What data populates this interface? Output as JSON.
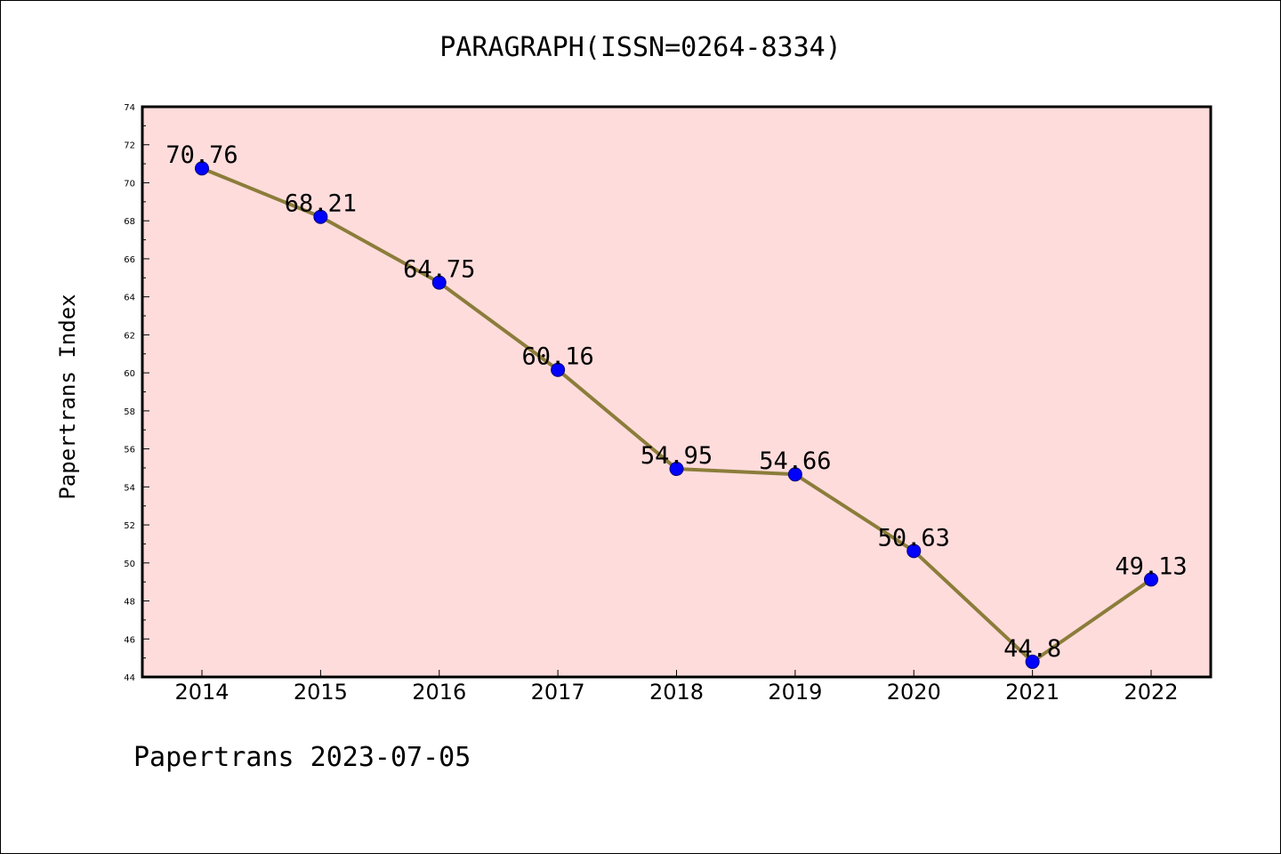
{
  "chart_data": {
    "type": "line",
    "title": "PARAGRAPH(ISSN=0264-8334)",
    "ylabel": "Papertrans Index",
    "xlabel": "",
    "footer": "Papertrans 2023-07-05",
    "x": [
      "2014",
      "2015",
      "2016",
      "2017",
      "2018",
      "2019",
      "2020",
      "2021",
      "2022"
    ],
    "series": [
      {
        "values": [
          70.76,
          68.21,
          64.75,
          60.16,
          54.95,
          54.66,
          50.63,
          44.8,
          49.13
        ],
        "labels": [
          "70.76",
          "68.21",
          "64.75",
          "60.16",
          "54.95",
          "54.66",
          "50.63",
          "44.8",
          "49.13"
        ]
      }
    ],
    "ylim": [
      44,
      74
    ],
    "yticks": [
      "44",
      "46",
      "48",
      "50",
      "52",
      "54",
      "56",
      "58",
      "60",
      "62",
      "64",
      "66",
      "68",
      "70",
      "72",
      "74"
    ],
    "grid": false,
    "colors": {
      "plot_background": "#ffdcdc",
      "line": "#8b7d3a",
      "marker": "#0000ff"
    }
  }
}
